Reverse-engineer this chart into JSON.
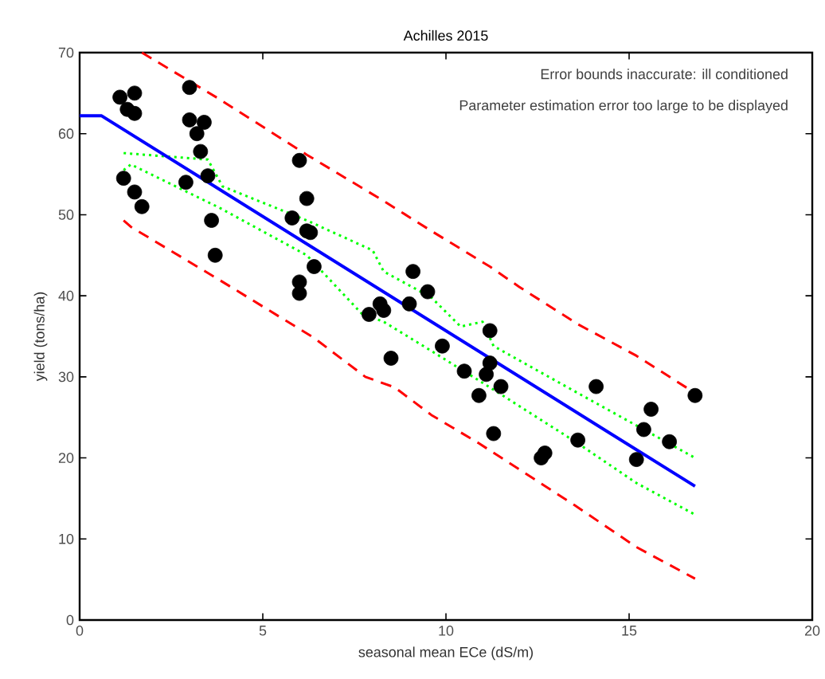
{
  "chart_data": {
    "type": "scatter",
    "title": "Achilles 2015",
    "xlabel": "seasonal mean ECe (dS/m)",
    "ylabel": "yield (tons/ha)",
    "annotations": [
      "Error bounds inaccurate: ill conditioned",
      "Parameter estimation error too large to be displayed"
    ],
    "xlim": [
      0,
      20
    ],
    "ylim": [
      0,
      70
    ],
    "xticks": [
      0,
      5,
      10,
      15,
      20
    ],
    "yticks": [
      0,
      10,
      20,
      30,
      40,
      50,
      60,
      70
    ],
    "grid": false,
    "series": [
      {
        "type": "line",
        "color": "#ff0000",
        "line_style": "dashed",
        "marker": "none",
        "x": [
          1.7,
          3.8,
          6.2,
          8.3,
          9.6,
          11.2,
          12,
          13.6,
          15.2,
          16.8
        ],
        "values": [
          70,
          64.3,
          57.4,
          51.7,
          48,
          43.6,
          41.1,
          36.5,
          32.6,
          28
        ]
      },
      {
        "type": "line",
        "color": "#ff0000",
        "line_style": "dashed",
        "marker": "none",
        "x": [
          1.2,
          1.4,
          3.8,
          6.4,
          7.8,
          8.6,
          9.6,
          10.9,
          13.5,
          15.2,
          16.8
        ],
        "values": [
          49.3,
          48.5,
          42,
          34.8,
          30,
          28.7,
          25.3,
          21.8,
          14.2,
          9,
          5.1
        ]
      },
      {
        "type": "line",
        "color": "#00ff00",
        "line_style": "dotted",
        "marker": "none",
        "x": [
          1.2,
          3.5,
          3.9,
          6.2,
          8.0,
          8.3,
          9.6,
          10.4,
          11,
          11.3,
          13.6,
          15.2,
          16.8
        ],
        "values": [
          57.6,
          56.8,
          53.5,
          49.3,
          45.6,
          43,
          39.8,
          36.2,
          36.8,
          33.8,
          28,
          24,
          20
        ]
      },
      {
        "type": "line",
        "color": "#00ff00",
        "line_style": "dotted",
        "marker": "none",
        "x": [
          1.2,
          1.4,
          3.8,
          6.2,
          7.7,
          8.3,
          9.6,
          11.2,
          13.6,
          15.2,
          16.8
        ],
        "values": [
          55.5,
          56.2,
          50.9,
          45,
          37.8,
          36.8,
          33.2,
          28.7,
          21.8,
          16.9,
          13
        ]
      },
      {
        "type": "line",
        "color": "#0000ff",
        "line_style": "solid",
        "marker": "none",
        "x": [
          0,
          0.6,
          16.8
        ],
        "values": [
          62.2,
          62.2,
          16.5
        ]
      },
      {
        "color": "#000000",
        "marker": "circle",
        "x": [
          1.1,
          1.5,
          1.3,
          1.5,
          1.2,
          1.5,
          1.7,
          2.9,
          3.0,
          3.0,
          3.2,
          3.3,
          3.4,
          3.5,
          3.6,
          3.7,
          5.8,
          6.0,
          6.0,
          6.0,
          6.2,
          6.2,
          6.3,
          6.4,
          7.9,
          8.2,
          8.3,
          8.5,
          9.0,
          9.1,
          9.5,
          9.9,
          10.5,
          10.9,
          11.1,
          11.2,
          11.2,
          11.3,
          11.5,
          12.6,
          12.7,
          13.6,
          14.1,
          15.2,
          15.4,
          15.6,
          16.1,
          16.8
        ],
        "values": [
          64.5,
          65,
          63,
          62.5,
          54.5,
          52.8,
          51,
          54,
          65.7,
          61.7,
          60,
          57.8,
          61.4,
          54.8,
          49.3,
          45,
          49.6,
          56.7,
          40.3,
          41.7,
          52,
          48,
          47.8,
          43.6,
          37.7,
          39,
          38.2,
          32.3,
          39,
          43,
          40.5,
          33.8,
          30.7,
          27.7,
          30.3,
          31.7,
          35.7,
          23,
          28.8,
          20,
          20.6,
          22.2,
          28.8,
          19.8,
          23.5,
          26,
          22,
          27.7
        ]
      }
    ]
  }
}
